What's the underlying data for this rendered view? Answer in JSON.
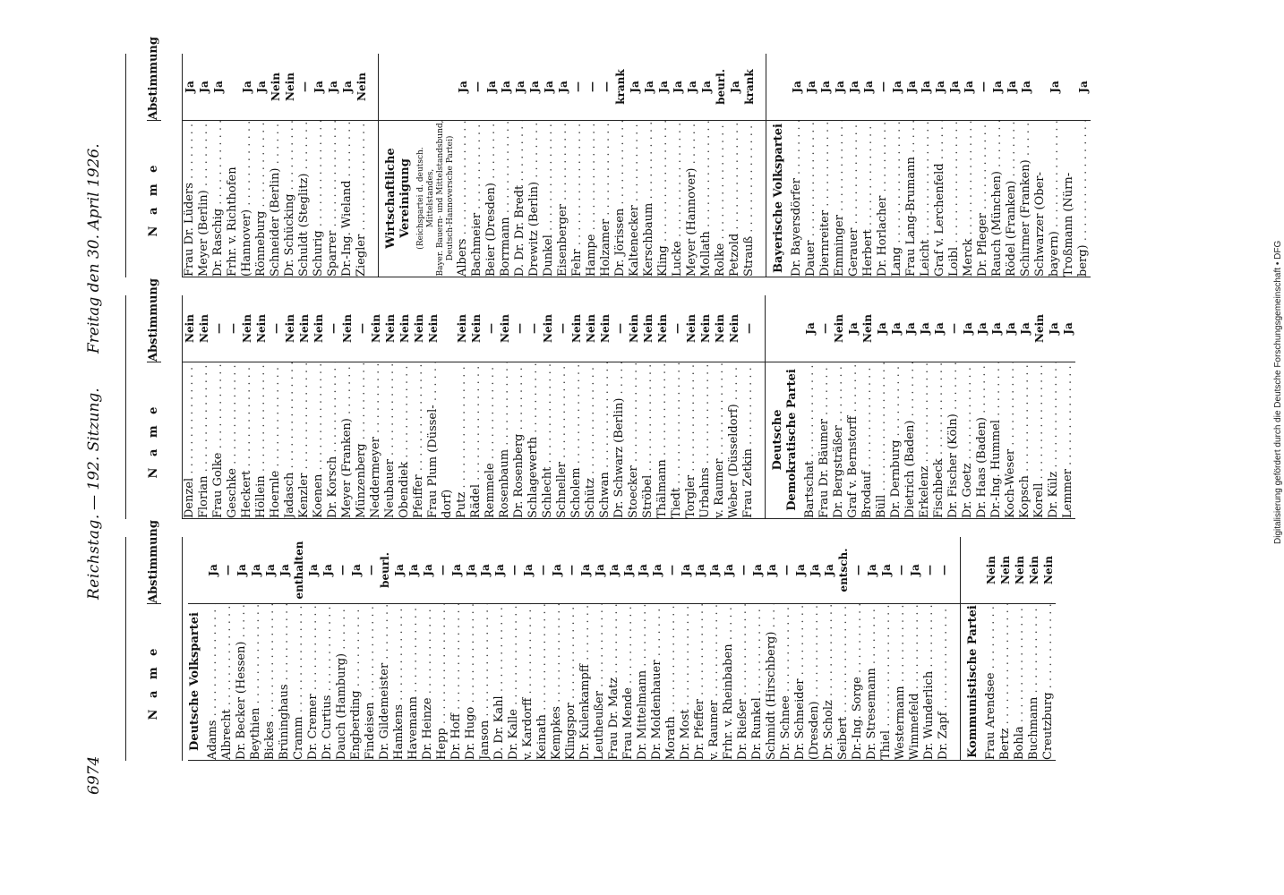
{
  "header": {
    "page_no": "6974",
    "title": "Reichstag.",
    "session": "— 192. Sitzung.",
    "date": "Freitag den 30. April 1926."
  },
  "columns": {
    "name_label": "N a m e",
    "vote_label": "Abstimmung"
  },
  "col1": {
    "party1": "Deutsche Volkspartei",
    "rows1": [
      [
        "Adams",
        "Ja"
      ],
      [
        "Albrecht",
        "—"
      ],
      [
        "Dr. Becker (Hessen)",
        "Ja"
      ],
      [
        "Beythien",
        "Ja"
      ],
      [
        "Bickes",
        "Ja"
      ],
      [
        "Brüninghaus",
        "Ja"
      ],
      [
        "Cramm",
        "enthalten"
      ],
      [
        "Dr. Cremer",
        "Ja"
      ],
      [
        "Dr. Curtius",
        "Ja"
      ],
      [
        "Dauch (Hamburg)",
        "—"
      ],
      [
        "Engberding",
        "Ja"
      ],
      [
        "Findeisen",
        "—"
      ],
      [
        "Dr. Gildemeister",
        "beurl."
      ],
      [
        "Hamkens",
        "Ja"
      ],
      [
        "Havemann",
        "Ja"
      ],
      [
        "Dr. Heinze",
        "Ja"
      ],
      [
        "Hepp",
        "—"
      ],
      [
        "Dr. Hoff",
        "Ja"
      ],
      [
        "Dr. Hugo",
        "Ja"
      ],
      [
        "Janson",
        "Ja"
      ],
      [
        "D. Dr. Kahl",
        "Ja"
      ],
      [
        "Dr. Kalle",
        "—"
      ],
      [
        "v. Kardorff",
        "Ja"
      ],
      [
        "Keinath",
        "—"
      ],
      [
        "Kempkes",
        "Ja"
      ],
      [
        "Klingspor",
        "—"
      ],
      [
        "Dr. Kulenkampff",
        "Ja"
      ],
      [
        "Leutheußer",
        "Ja"
      ],
      [
        "Frau Dr. Matz",
        "Ja"
      ],
      [
        "Frau Mende",
        "Ja"
      ],
      [
        "Dr. Mittelmann",
        "Ja"
      ],
      [
        "Dr. Moldenhauer",
        "Ja"
      ],
      [
        "Morath",
        "—"
      ],
      [
        "Dr. Most",
        "Ja"
      ],
      [
        "Dr. Pfeffer",
        "Ja"
      ],
      [
        "v. Raumer",
        "Ja"
      ],
      [
        "Frhr. v. Rheinbaben",
        "Ja"
      ],
      [
        "Dr. Rießer",
        "—"
      ],
      [
        "Dr. Runkel",
        "Ja"
      ],
      [
        "Schmidt (Hirschberg)",
        "Ja"
      ],
      [
        "Dr. Schnee",
        "—"
      ],
      [
        "Dr. Schneider",
        "Ja"
      ],
      [
        "(Dresden)",
        "Ja"
      ],
      [
        "Dr. Scholz",
        "Ja"
      ],
      [
        "Seibert",
        "entsch."
      ],
      [
        "Dr.-Ing. Sorge",
        "—"
      ],
      [
        "Dr. Stresemann",
        "Ja"
      ],
      [
        "Thiel",
        "Ja"
      ],
      [
        "Westermann",
        "—"
      ],
      [
        "Wimmefeld",
        "Ja"
      ],
      [
        "Dr. Wunderlich",
        "—"
      ],
      [
        "Dr. Zapf",
        "—"
      ]
    ],
    "party2": "Kommunistische Partei",
    "rows2": [
      [
        "Frau Arendsee",
        "Nein"
      ],
      [
        "Bertz",
        "Nein"
      ],
      [
        "Bohla",
        "Nein"
      ],
      [
        "Buchmann",
        "Nein"
      ],
      [
        "Creutzburg",
        "Nein"
      ]
    ]
  },
  "col2": {
    "rows1": [
      [
        "Denzel",
        "Nein"
      ],
      [
        "Florian",
        "Nein"
      ],
      [
        "Frau Golke",
        "—"
      ],
      [
        "Geschke",
        "—"
      ],
      [
        "Heckert",
        "Nein"
      ],
      [
        "Höllein",
        "Nein"
      ],
      [
        "Hoernle",
        "—"
      ],
      [
        "Jadasch",
        "Nein"
      ],
      [
        "Kenzler",
        "Nein"
      ],
      [
        "Koenen",
        "Nein"
      ],
      [
        "Dr. Korsch",
        "—"
      ],
      [
        "Meyer (Franken)",
        "Nein"
      ],
      [
        "Münzenberg",
        "—"
      ],
      [
        "Neddermeyer",
        "Nein"
      ],
      [
        "Neubauer",
        "Nein"
      ],
      [
        "Obendiek",
        "Nein"
      ],
      [
        "Pfeiffer",
        "Nein"
      ],
      [
        "Frau Plum (Düssel-",
        "Nein"
      ],
      [
        "dorf)",
        ""
      ],
      [
        "Putz",
        "Nein"
      ],
      [
        "Rädel",
        "Nein"
      ],
      [
        "Remmele",
        "—"
      ],
      [
        "Rosenbaum",
        "Nein"
      ],
      [
        "Dr. Rosenberg",
        "—"
      ],
      [
        "Schlagewerth",
        "—"
      ],
      [
        "Schlecht",
        "Nein"
      ],
      [
        "Schneller",
        "—"
      ],
      [
        "Scholem",
        "Nein"
      ],
      [
        "Schütz",
        "Nein"
      ],
      [
        "Schwan",
        "Nein"
      ],
      [
        "Dr. Schwarz (Berlin)",
        "—"
      ],
      [
        "Stoecker",
        "Nein"
      ],
      [
        "Ströbel",
        "Nein"
      ],
      [
        "Thälmann",
        "Nein"
      ],
      [
        "Tiedt",
        "—"
      ],
      [
        "Torgler",
        "Nein"
      ],
      [
        "Urbahns",
        "Nein"
      ],
      [
        "v. Raumer",
        "Nein"
      ],
      [
        "Weber (Düsseldorf)",
        "Nein"
      ],
      [
        "Frau Zetkin",
        "—"
      ]
    ],
    "party2": "Deutsche Demokratische Partei",
    "rows2": [
      [
        "Bartschat",
        "Ja"
      ],
      [
        "Frau Dr. Bäumer",
        "—"
      ],
      [
        "Dr. Bergsträßer",
        "Nein"
      ],
      [
        "Graf v. Bernstorff",
        "Ja"
      ],
      [
        "Brodauf",
        "Nein"
      ],
      [
        "Büll",
        "Ja"
      ],
      [
        "Dr. Dernburg",
        "Ja"
      ],
      [
        "Dietrich (Baden)",
        "Ja"
      ],
      [
        "Erkelenz",
        "Ja"
      ],
      [
        "Fischbeck",
        "Ja"
      ],
      [
        "Dr. Fischer (Köln)",
        "—"
      ],
      [
        "Dr. Goetz",
        "Ja"
      ],
      [
        "Dr. Haas (Baden)",
        "Ja"
      ],
      [
        "Dr.-Ing. Hummel",
        "Ja"
      ],
      [
        "Koch-Weser",
        "Ja"
      ],
      [
        "Kopsch",
        "Ja"
      ],
      [
        "Korell",
        "Nein"
      ],
      [
        "Dr. Külz",
        "Ja"
      ],
      [
        "Lemmer",
        "Ja"
      ]
    ]
  },
  "col3": {
    "rows1": [
      [
        "Frau Dr. Lüders",
        "Ja"
      ],
      [
        "Meyer (Berlin)",
        "Ja"
      ],
      [
        "Dr. Raschig",
        "Ja"
      ],
      [
        "Frhr. v. Richthofen",
        ""
      ],
      [
        "(Hannover)",
        "Ja"
      ],
      [
        "Rönneburg",
        "Ja"
      ],
      [
        "Schneider (Berlin)",
        "Nein"
      ],
      [
        "Dr. Schücking",
        "Nein"
      ],
      [
        "Schuldt (Steglitz)",
        "—"
      ],
      [
        "Schurig",
        "Ja"
      ],
      [
        "Sparrer",
        "Ja"
      ],
      [
        "Dr.-Ing. Wieland",
        "Ja"
      ],
      [
        "Ziegler",
        "Nein"
      ]
    ],
    "party2": "Wirtschaftliche Vereinigung",
    "party2_sub": [
      "(Reichspartei d. deutsch. Mittelstandes,",
      "Bayer. Bauern- und Mittelstandsbund,",
      "Deutsch-Hannoversche Partei)"
    ],
    "rows2": [
      [
        "Albers",
        "Ja"
      ],
      [
        "Bachmeier",
        "—"
      ],
      [
        "Beier (Dresden)",
        "Ja"
      ],
      [
        "Borrmann",
        "Ja"
      ],
      [
        "D. Dr. Dr. Bredt",
        "Ja"
      ],
      [
        "Drewitz (Berlin)",
        "Ja"
      ],
      [
        "Dunkel",
        "Ja"
      ],
      [
        "Eisenberger",
        "Ja"
      ],
      [
        "Fehr",
        "—"
      ],
      [
        "Hampe",
        "—"
      ],
      [
        "Holzamer",
        "—"
      ],
      [
        "Dr. Jörissen",
        "krank"
      ],
      [
        "Kaltenecker",
        "Ja"
      ],
      [
        "Kerschbaum",
        "Ja"
      ],
      [
        "Kling",
        "Ja"
      ],
      [
        "Lucke",
        "Ja"
      ],
      [
        "Meyer (Hannover)",
        "Ja"
      ],
      [
        "Mollath",
        "Ja"
      ],
      [
        "Rolke",
        "beurl."
      ],
      [
        "Petzold",
        "Ja"
      ],
      [
        "Strauß",
        "krank"
      ]
    ],
    "party3": "Bayerische Volkspartei",
    "rows3": [
      [
        "Dr. Bayersdörfer",
        "Ja"
      ],
      [
        "Dauer",
        "Ja"
      ],
      [
        "Diernreiter",
        "Ja"
      ],
      [
        "Emminger",
        "Ja"
      ],
      [
        "Gerauer",
        "Ja"
      ],
      [
        "Herbert",
        "Ja"
      ],
      [
        "Dr. Horlacher",
        "—"
      ],
      [
        "Lang",
        "Ja"
      ],
      [
        "Frau Lang-Brumann",
        "Ja"
      ],
      [
        "Leicht",
        "Ja"
      ],
      [
        "Graf v. Lerchenfeld",
        "Ja"
      ],
      [
        "Loibl",
        "Ja"
      ],
      [
        "Merck",
        "Ja"
      ],
      [
        "Dr. Pfleger",
        "—"
      ],
      [
        "Rauch (München)",
        "Ja"
      ],
      [
        "Rödel (Franken)",
        "Ja"
      ],
      [
        "Schirmer (Franken)",
        "Ja"
      ],
      [
        "Schwarzer (Ober-",
        ""
      ],
      [
        "bayern)",
        "Ja"
      ],
      [
        "Troßmann (Nürn-",
        ""
      ],
      [
        "berg)",
        "Ja"
      ]
    ]
  },
  "stamp": "Digitalisierung gefördert durch die Deutsche Forschungsgemeinschaft • DFG"
}
